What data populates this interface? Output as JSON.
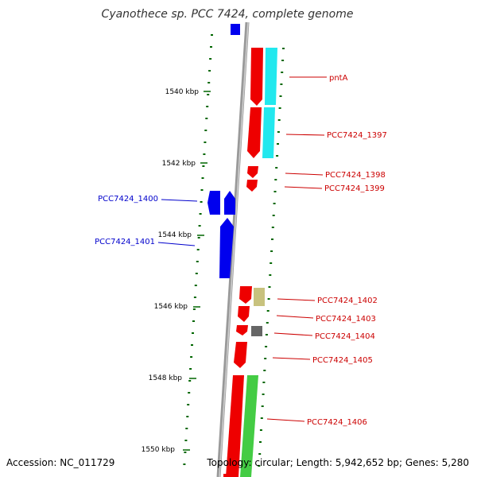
{
  "title": "Cyanothece sp. PCC 7424, complete genome",
  "footer": {
    "accession": "Accession: NC_011729",
    "topology": "Topology: circular; Length: 5,942,652 bp; Genes: 5,280"
  },
  "kbp_labels": [
    "1540 kbp",
    "1542 kbp",
    "1544 kbp",
    "1546 kbp",
    "1548 kbp",
    "1550 kbp"
  ],
  "colors": {
    "forward": "#ee0000",
    "reverse": "#0000ee",
    "forward_label": "#cc0000",
    "reverse_label": "#0000cc",
    "cyan": "#22e8ee",
    "khaki": "#c8c27e",
    "gray": "#666666",
    "green": "#44cc44",
    "tick": "#006600",
    "backbone": "#999999"
  },
  "gene_labels": [
    {
      "id": "pntA",
      "strand": "forward"
    },
    {
      "id": "PCC7424_1397",
      "strand": "forward"
    },
    {
      "id": "PCC7424_1398",
      "strand": "forward"
    },
    {
      "id": "PCC7424_1399",
      "strand": "forward"
    },
    {
      "id": "PCC7424_1400",
      "strand": "reverse"
    },
    {
      "id": "PCC7424_1401",
      "strand": "reverse"
    },
    {
      "id": "PCC7424_1402",
      "strand": "forward"
    },
    {
      "id": "PCC7424_1403",
      "strand": "forward"
    },
    {
      "id": "PCC7424_1404",
      "strand": "forward"
    },
    {
      "id": "PCC7424_1405",
      "strand": "forward"
    },
    {
      "id": "PCC7424_1406",
      "strand": "forward"
    }
  ]
}
